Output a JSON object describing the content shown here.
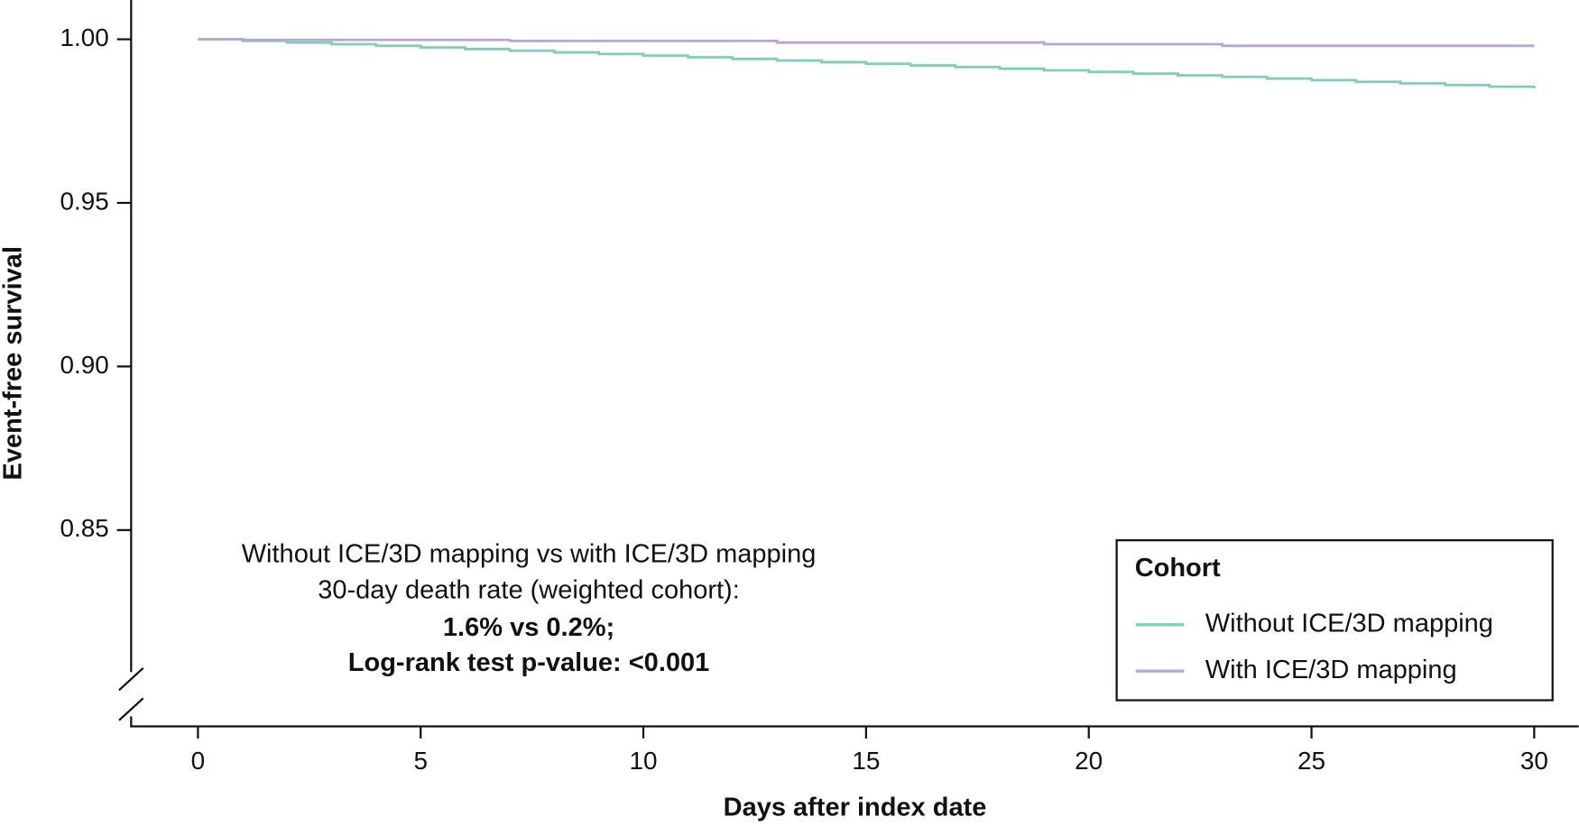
{
  "chart_data": {
    "type": "line",
    "x_label": "Days after index date",
    "y_label": "Event-free survival",
    "x": [
      0,
      1,
      2,
      3,
      4,
      5,
      6,
      7,
      8,
      9,
      10,
      11,
      12,
      13,
      14,
      15,
      16,
      17,
      18,
      19,
      20,
      21,
      22,
      23,
      24,
      25,
      26,
      27,
      28,
      29,
      30
    ],
    "series": [
      {
        "name": "Without ICE/3D mapping",
        "color": "#7fcdbb",
        "values": [
          1.0,
          0.9995,
          0.999,
          0.9985,
          0.998,
          0.9975,
          0.997,
          0.9965,
          0.996,
          0.9955,
          0.995,
          0.9945,
          0.994,
          0.9935,
          0.993,
          0.9925,
          0.992,
          0.9915,
          0.991,
          0.9905,
          0.99,
          0.9895,
          0.989,
          0.9885,
          0.988,
          0.9875,
          0.987,
          0.9865,
          0.986,
          0.9855,
          0.985
        ]
      },
      {
        "name": "With ICE/3D mapping",
        "color": "#b9a6cc",
        "values": [
          1.0,
          0.9998,
          0.9998,
          0.9998,
          0.9998,
          0.9998,
          0.9998,
          0.9995,
          0.9995,
          0.9995,
          0.9995,
          0.9995,
          0.9995,
          0.999,
          0.999,
          0.999,
          0.999,
          0.999,
          0.999,
          0.9985,
          0.9985,
          0.9985,
          0.9985,
          0.998,
          0.998,
          0.998,
          0.998,
          0.998,
          0.998,
          0.998,
          0.998
        ]
      }
    ],
    "xlim": [
      -1.5,
      31
    ],
    "ylim": [
      0.79,
      1.012
    ],
    "xticks": [
      0,
      5,
      10,
      15,
      20,
      25,
      30
    ],
    "yticks": [
      {
        "value": 0.85,
        "label": "0.85"
      },
      {
        "value": 0.9,
        "label": "0.90"
      },
      {
        "value": 0.95,
        "label": "0.95"
      },
      {
        "value": 1.0,
        "label": "1.00"
      }
    ],
    "legend_title": "Cohort",
    "legend_position": "lower right",
    "annotation": [
      "Without ICE/3D mapping vs with ICE/3D mapping",
      "30-day death rate (weighted cohort):",
      "1.6% vs 0.2%;",
      "Log-rank test p-value: <0.001"
    ]
  }
}
